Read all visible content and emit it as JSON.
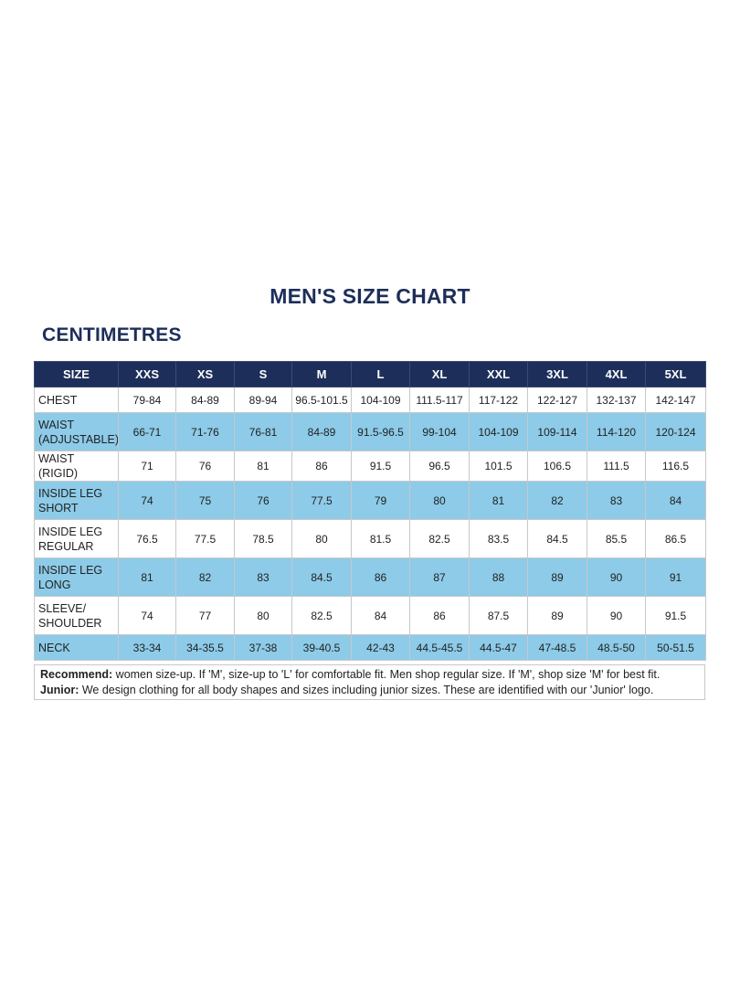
{
  "title": "MEN'S SIZE CHART",
  "subtitle": "CENTIMETRES",
  "table": {
    "headers": [
      "SIZE",
      "XXS",
      "XS",
      "S",
      "M",
      "L",
      "XL",
      "XXL",
      "3XL",
      "4XL",
      "5XL"
    ],
    "rows": [
      {
        "label": "CHEST",
        "values": [
          "79-84",
          "84-89",
          "89-94",
          "96.5-101.5",
          "104-109",
          "111.5-117",
          "117-122",
          "122-127",
          "132-137",
          "142-147"
        ]
      },
      {
        "label": "WAIST (ADJUSTABLE)",
        "values": [
          "66-71",
          "71-76",
          "76-81",
          "84-89",
          "91.5-96.5",
          "99-104",
          "104-109",
          "109-114",
          "114-120",
          "120-124"
        ]
      },
      {
        "label": "WAIST (RIGID)",
        "values": [
          "71",
          "76",
          "81",
          "86",
          "91.5",
          "96.5",
          "101.5",
          "106.5",
          "111.5",
          "116.5"
        ]
      },
      {
        "label": "INSIDE LEG SHORT",
        "values": [
          "74",
          "75",
          "76",
          "77.5",
          "79",
          "80",
          "81",
          "82",
          "83",
          "84"
        ]
      },
      {
        "label": "INSIDE LEG REGULAR",
        "values": [
          "76.5",
          "77.5",
          "78.5",
          "80",
          "81.5",
          "82.5",
          "83.5",
          "84.5",
          "85.5",
          "86.5"
        ]
      },
      {
        "label": "INSIDE LEG LONG",
        "values": [
          "81",
          "82",
          "83",
          "84.5",
          "86",
          "87",
          "88",
          "89",
          "90",
          "91"
        ]
      },
      {
        "label": "SLEEVE/ SHOULDER",
        "values": [
          "74",
          "77",
          "80",
          "82.5",
          "84",
          "86",
          "87.5",
          "89",
          "90",
          "91.5"
        ]
      },
      {
        "label": "NECK",
        "values": [
          "33-34",
          "34-35.5",
          "37-38",
          "39-40.5",
          "42-43",
          "44.5-45.5",
          "44.5-47",
          "47-48.5",
          "48.5-50",
          "50-51.5"
        ]
      }
    ]
  },
  "notes": {
    "recommend_label": "Recommend:",
    "recommend_text": " women size-up. If 'M', size-up to 'L' for comfortable fit. Men shop regular size. If 'M', shop size 'M' for best fit.",
    "junior_label": "Junior:",
    "junior_text": " We design clothing for all body shapes and sizes including junior sizes. These are identified with our 'Junior' logo."
  },
  "colors": {
    "navy": "#1d2e5a",
    "light_blue": "#8dcbe8"
  }
}
